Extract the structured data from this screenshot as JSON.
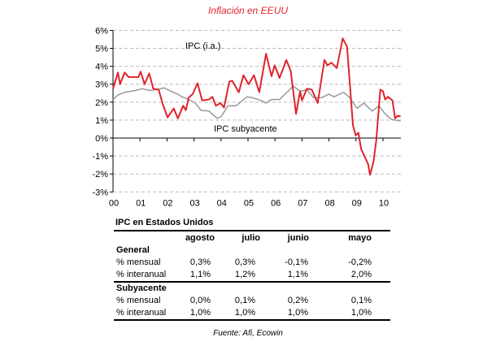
{
  "chart_data": {
    "type": "line",
    "title": "Inflación en EEUU",
    "xlabel": "",
    "ylabel": "",
    "ylim": [
      -3,
      6
    ],
    "xlim": [
      2000,
      2010.67
    ],
    "y_ticks": [
      "-3%",
      "-2%",
      "-1%",
      "0%",
      "1%",
      "2%",
      "3%",
      "4%",
      "5%",
      "6%"
    ],
    "x_ticks": [
      "00",
      "01",
      "02",
      "03",
      "04",
      "05",
      "06",
      "07",
      "08",
      "09",
      "10"
    ],
    "grid": "horizontal dashed",
    "series": [
      {
        "name": "IPC (i.a.)",
        "color": "#e0242c",
        "x": [
          2000.0,
          2000.18,
          2000.26,
          2000.43,
          2000.58,
          2000.94,
          2001.02,
          2001.17,
          2001.34,
          2001.49,
          2001.69,
          2001.84,
          2002.02,
          2002.25,
          2002.4,
          2002.6,
          2002.7,
          2002.8,
          2002.95,
          2003.13,
          2003.3,
          2003.55,
          2003.68,
          2003.81,
          2003.98,
          2004.11,
          2004.31,
          2004.41,
          2004.66,
          2004.83,
          2005.02,
          2005.22,
          2005.42,
          2005.67,
          2005.87,
          2005.99,
          2006.17,
          2006.42,
          2006.58,
          2006.78,
          2006.93,
          2007.0,
          2007.18,
          2007.36,
          2007.58,
          2007.83,
          2007.94,
          2008.09,
          2008.29,
          2008.51,
          2008.67,
          2008.89,
          2008.99,
          2009.09,
          2009.19,
          2009.45,
          2009.52,
          2009.65,
          2009.75,
          2009.9,
          2010.0,
          2010.08,
          2010.18,
          2010.35,
          2010.45,
          2010.55,
          2010.65
        ],
        "y": [
          2.75,
          3.65,
          3.0,
          3.65,
          3.4,
          3.4,
          3.7,
          3.0,
          3.6,
          2.75,
          2.7,
          1.9,
          1.15,
          1.65,
          1.1,
          1.8,
          1.55,
          2.25,
          2.45,
          3.05,
          2.1,
          2.15,
          2.3,
          1.8,
          1.95,
          1.7,
          3.15,
          3.2,
          2.55,
          3.5,
          3.0,
          3.5,
          2.55,
          4.7,
          3.45,
          4.05,
          3.35,
          4.35,
          3.75,
          1.35,
          2.6,
          2.1,
          2.75,
          2.7,
          1.95,
          4.35,
          4.05,
          4.2,
          3.9,
          5.55,
          5.1,
          0.7,
          0.15,
          0.3,
          -0.6,
          -1.45,
          -2.05,
          -1.3,
          -0.15,
          2.7,
          2.6,
          2.15,
          2.3,
          2.1,
          1.1,
          1.25,
          1.2
        ]
      },
      {
        "name": "IPC subyacente",
        "color": "#999999",
        "x": [
          2000.0,
          2000.18,
          2000.43,
          2000.84,
          2001.09,
          2001.34,
          2001.64,
          2001.89,
          2002.15,
          2002.4,
          2002.55,
          2002.8,
          2003.05,
          2003.25,
          2003.55,
          2003.86,
          2004.01,
          2004.26,
          2004.56,
          2004.96,
          2005.17,
          2005.47,
          2005.67,
          2005.87,
          2006.17,
          2006.48,
          2006.68,
          2006.93,
          2007.18,
          2007.43,
          2007.73,
          2007.99,
          2008.19,
          2008.54,
          2008.74,
          2009.04,
          2009.29,
          2009.6,
          2009.85,
          2010.05,
          2010.3,
          2010.65
        ],
        "y": [
          2.15,
          2.4,
          2.55,
          2.65,
          2.75,
          2.65,
          2.7,
          2.8,
          2.6,
          2.45,
          2.3,
          2.15,
          1.95,
          1.55,
          1.5,
          1.1,
          1.2,
          1.8,
          1.8,
          2.3,
          2.25,
          2.1,
          1.95,
          2.15,
          2.15,
          2.6,
          2.9,
          2.6,
          2.7,
          2.25,
          2.25,
          2.45,
          2.3,
          2.55,
          2.3,
          1.65,
          1.95,
          1.5,
          1.8,
          1.4,
          1.05,
          0.95
        ]
      }
    ]
  },
  "table": {
    "title": "IPC en Estados Unidos",
    "columns": [
      "agosto",
      "julio",
      "junio",
      "mayo"
    ],
    "groups": [
      {
        "label": "General",
        "rows": [
          {
            "label": "% mensual",
            "values": [
              "0,3%",
              "0,3%",
              "-0,1%",
              "-0,2%"
            ]
          },
          {
            "label": "% interanual",
            "values": [
              "1,1%",
              "1,2%",
              "1,1%",
              "2,0%"
            ]
          }
        ]
      },
      {
        "label": "Subyacente",
        "rows": [
          {
            "label": "% mensual",
            "values": [
              "0,0%",
              "0,1%",
              "0,2%",
              "0,1%"
            ]
          },
          {
            "label": "% interanual",
            "values": [
              "1,0%",
              "1,0%",
              "1,0%",
              "1,0%"
            ]
          }
        ]
      }
    ]
  },
  "source": "Fuente: Afi, Ecowin"
}
